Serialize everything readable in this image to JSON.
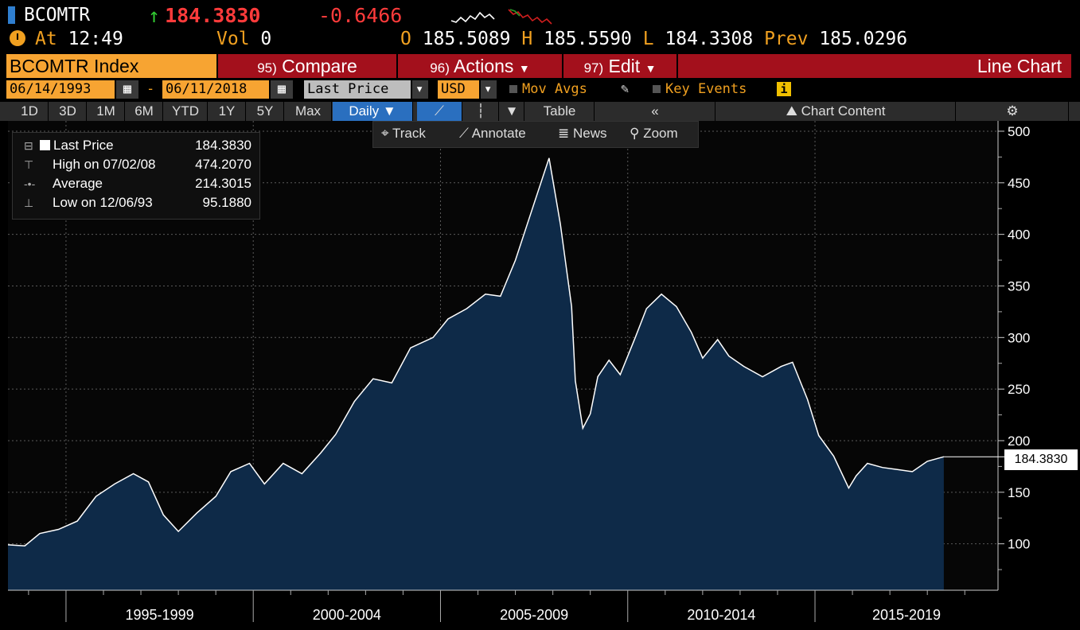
{
  "header": {
    "ticker": "BCOMTR",
    "last_price": "184.3830",
    "change": "-0.6466",
    "up_arrow": "↑",
    "time_label": "At",
    "time": "12:49",
    "vol_label": "Vol",
    "vol": "0",
    "open_label": "O",
    "open": "185.5089",
    "high_label": "H",
    "high": "185.5590",
    "low_label": "L",
    "low": "184.3308",
    "prev_label": "Prev",
    "prev": "185.0296"
  },
  "menu": {
    "index_name": "BCOMTR Index",
    "compare_num": "95)",
    "compare": "Compare",
    "actions_num": "96)",
    "actions": "Actions",
    "edit_num": "97)",
    "edit": "Edit",
    "chart_type": "Line Chart"
  },
  "controls": {
    "start_date": "06/14/1993",
    "dash": "-",
    "end_date": "06/11/2018",
    "field": "Last Price",
    "currency": "USD",
    "mov_avgs": "Mov Avgs",
    "key_events": "Key Events",
    "info": "i"
  },
  "range_tabs": [
    "1D",
    "3D",
    "1M",
    "6M",
    "YTD",
    "1Y",
    "5Y",
    "Max"
  ],
  "frequency": "Daily ▼",
  "table_label": "Table",
  "collapse": "«",
  "chart_content": "Chart Content",
  "gear": "⚙",
  "tools": {
    "track": "Track",
    "annotate": "Annotate",
    "news": "News",
    "zoom": "Zoom"
  },
  "legend": {
    "last_label": "Last Price",
    "last_value": "184.3830",
    "high_label": "High on 07/02/08",
    "high_value": "474.2070",
    "avg_label": "Average",
    "avg_value": "214.3015",
    "low_label": "Low on 12/06/93",
    "low_value": "95.1880"
  },
  "last_tag": "184.3830",
  "colors": {
    "accent_orange": "#f7a432",
    "menu_red": "#a3101c",
    "negative": "#ff3b3b",
    "area_fill": "#0e2a48",
    "line": "#ffffff"
  },
  "chart_data": {
    "type": "area",
    "x_labels": [
      "1995-1999",
      "2000-2004",
      "2005-2009",
      "2010-2014",
      "2015-2019"
    ],
    "y_ticks": [
      100,
      150,
      200,
      250,
      300,
      350,
      400,
      450,
      500
    ],
    "ylim": [
      55,
      510
    ],
    "xlim": [
      1993.45,
      2019.25
    ],
    "series": [
      {
        "x": [
          1993.45,
          1993.9,
          1994.3,
          1994.8,
          1995.3,
          1995.8,
          1996.3,
          1996.8,
          1997.2,
          1997.6,
          1998.0,
          1998.5,
          1999.0,
          1999.4,
          1999.9,
          2000.3,
          2000.8,
          2001.3,
          2001.8,
          2002.2,
          2002.7,
          2003.2,
          2003.7,
          2004.2,
          2004.8,
          2005.2,
          2005.7,
          2006.2,
          2006.6,
          2007.0,
          2007.5,
          2007.9,
          2008.2,
          2008.5,
          2008.6,
          2008.8,
          2009.0,
          2009.2,
          2009.5,
          2009.8,
          2010.2,
          2010.5,
          2010.9,
          2011.3,
          2011.7,
          2012.0,
          2012.4,
          2012.7,
          2013.1,
          2013.6,
          2014.1,
          2014.4,
          2014.8,
          2015.1,
          2015.5,
          2015.9,
          2016.1,
          2016.4,
          2016.8,
          2017.2,
          2017.6,
          2018.0,
          2018.44
        ],
        "y": [
          99,
          98,
          110,
          114,
          122,
          146,
          158,
          168,
          160,
          128,
          112,
          130,
          146,
          170,
          178,
          158,
          178,
          168,
          188,
          206,
          238,
          260,
          256,
          290,
          300,
          318,
          328,
          342,
          340,
          375,
          430,
          474,
          410,
          330,
          258,
          212,
          226,
          262,
          278,
          264,
          300,
          328,
          342,
          330,
          305,
          280,
          298,
          282,
          272,
          262,
          272,
          276,
          240,
          205,
          185,
          154,
          166,
          178,
          174,
          172,
          170,
          180,
          184.383
        ]
      }
    ]
  }
}
